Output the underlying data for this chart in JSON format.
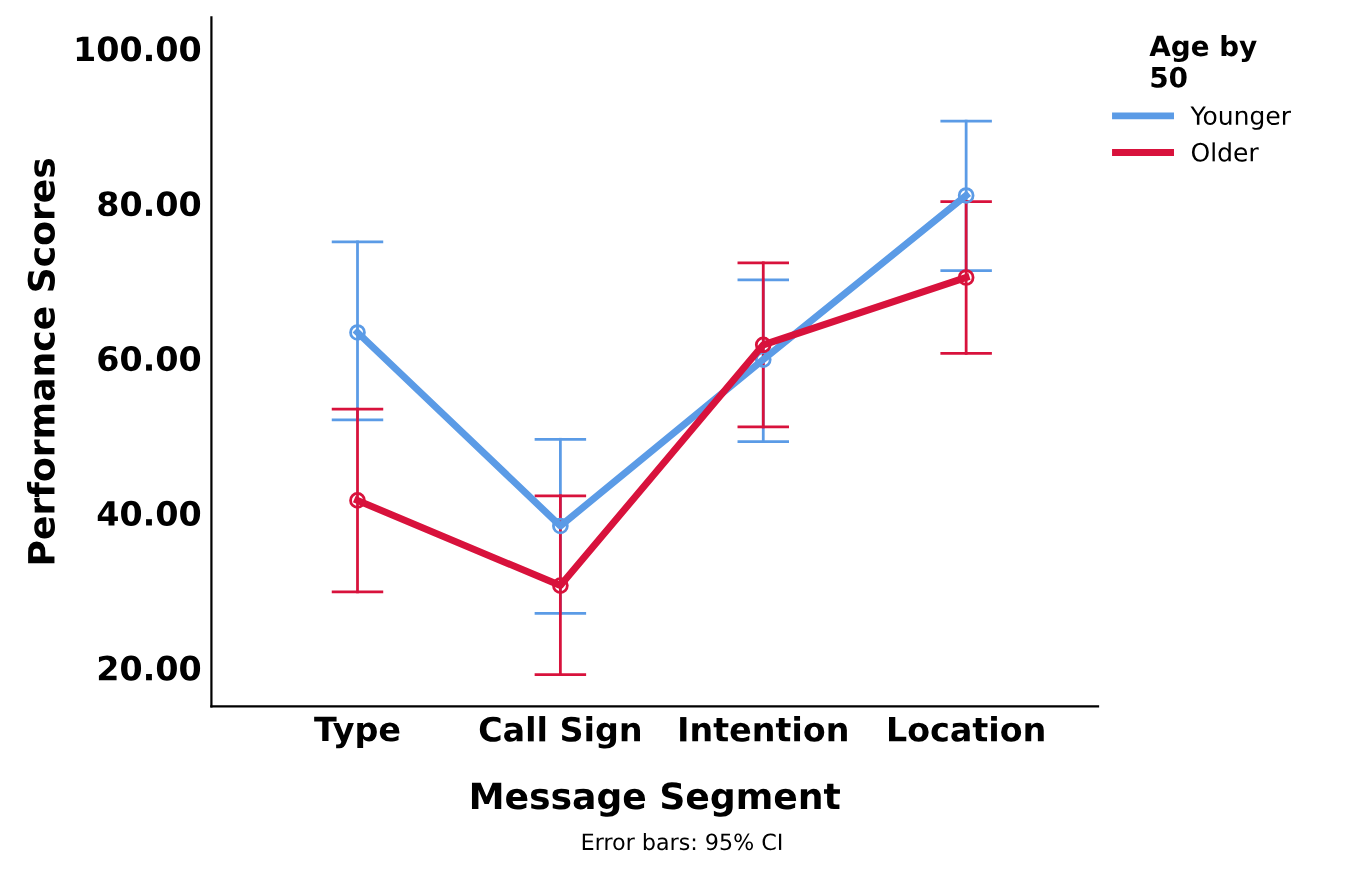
{
  "chart_data": {
    "type": "line",
    "xlabel": "Message Segment",
    "ylabel": "Performance Scores",
    "legend_title": "Age by\n50",
    "categories": [
      "Type",
      "Call Sign",
      "Intention",
      "Location"
    ],
    "series": [
      {
        "name": "Younger",
        "color": "#5b9be6",
        "values": [
          63.3,
          38.3,
          59.8,
          81.0
        ],
        "errors": [
          [
            52.0,
            75.0
          ],
          [
            27.0,
            49.5
          ],
          [
            49.2,
            70.1
          ],
          [
            71.3,
            90.6
          ]
        ]
      },
      {
        "name": "Older",
        "color": "#d8123c",
        "values": [
          41.6,
          30.6,
          61.7,
          70.4
        ],
        "errors": [
          [
            29.8,
            53.4
          ],
          [
            19.1,
            42.2
          ],
          [
            51.1,
            72.3
          ],
          [
            60.6,
            80.2
          ]
        ]
      }
    ],
    "ylim": [
      15,
      104
    ],
    "yticks": [
      {
        "value": 20,
        "label": "20.00"
      },
      {
        "value": 40,
        "label": "40.00"
      },
      {
        "value": 60,
        "label": "60.00"
      },
      {
        "value": 80,
        "label": "80.00"
      },
      {
        "value": 100,
        "label": "100.00"
      }
    ],
    "marker": "circle",
    "grid": false,
    "legend": "top right",
    "annotations": [
      "Error bars: 95% CI"
    ]
  }
}
